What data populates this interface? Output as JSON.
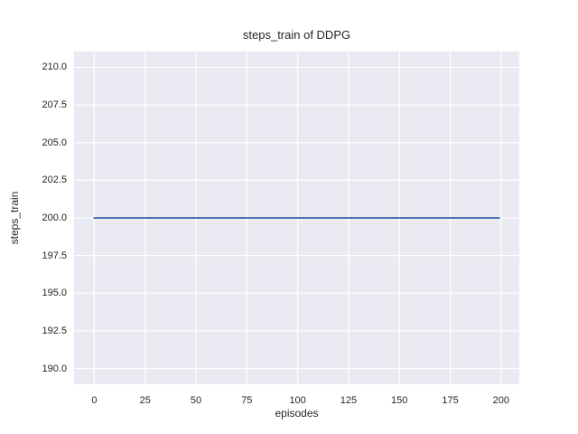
{
  "chart_data": {
    "type": "line",
    "title": "steps_train of DDPG",
    "xlabel": "episodes",
    "ylabel": "steps_train",
    "xlim": [
      -9.95,
      208.95
    ],
    "ylim": [
      188.95,
      211.05
    ],
    "xticks": {
      "values": [
        0,
        25,
        50,
        75,
        100,
        125,
        150,
        175,
        200
      ],
      "labels": [
        "0",
        "25",
        "50",
        "75",
        "100",
        "125",
        "150",
        "175",
        "200"
      ]
    },
    "yticks": {
      "values": [
        190.0,
        192.5,
        195.0,
        197.5,
        200.0,
        202.5,
        205.0,
        207.5,
        210.0
      ],
      "labels": [
        "190.0",
        "192.5",
        "195.0",
        "197.5",
        "200.0",
        "202.5",
        "205.0",
        "207.5",
        "210.0"
      ]
    },
    "grid": true,
    "legend": "none",
    "series": [
      {
        "name": "steps_train",
        "x": [
          0,
          199
        ],
        "y": [
          200.0,
          200.0
        ],
        "color": "#4c72b0",
        "line_width": 2
      }
    ],
    "colors": {
      "figure_background": "#ffffff",
      "axes_background": "#eaeaf2",
      "grid": "#ffffff",
      "text": "#262626"
    }
  }
}
